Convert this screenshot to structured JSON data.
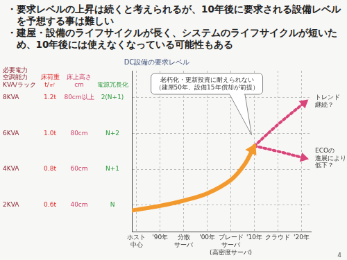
{
  "bullets": [
    "・要求レベルの上昇は続くと考えられるが、10年後に要求される設備レベルを予想する事は難しい",
    "・建屋・設備のライフサイクルが長く、システムのライフサイクルが短いため、10年後には使えなくなっている可能性もある"
  ],
  "page_number": "4",
  "chart_data": {
    "type": "line",
    "title": "DC設備の要求レベル",
    "x": [
      1984,
      1990,
      1995,
      2000,
      2005,
      2008,
      2010,
      2015,
      2021
    ],
    "xlim": [
      1984,
      2022
    ],
    "xticks": [
      {
        "value": 1985,
        "label": "ホスト\n中心"
      },
      {
        "value": 1990,
        "label": "'90年"
      },
      {
        "value": 1995,
        "label": "分散\nサーバ"
      },
      {
        "value": 2000,
        "label": "'00年"
      },
      {
        "value": 2005,
        "label": "ブレード\nサーバ\n(高密度サーバ)"
      },
      {
        "value": 2010,
        "label": "'10年"
      },
      {
        "value": 2015,
        "label": "クラウド"
      },
      {
        "value": 2020,
        "label": "'20年"
      }
    ],
    "ylim": [
      0.5,
      9.5
    ],
    "yticks": [
      {
        "value": 2,
        "label": "2KVA"
      },
      {
        "value": 4,
        "label": "4KVA"
      },
      {
        "value": 6,
        "label": "6KVA"
      },
      {
        "value": 8,
        "label": "8KVA"
      }
    ],
    "grid": true,
    "table": {
      "headers": [
        "必要電力\n空調能力\nKVA/ラック",
        "床荷重\nt/㎡",
        "床上高さ\ncm",
        "電源冗長化"
      ],
      "rows": [
        [
          "0.6t",
          "40cm",
          "N"
        ],
        [
          "0.8t",
          "60cm",
          "N+1"
        ],
        [
          "1.0t",
          "80cm",
          "N+2"
        ],
        [
          "1.2t",
          "80cm以上",
          "2(N+1)"
        ]
      ]
    },
    "series": [
      {
        "color": "#f39a2e",
        "line_style": "solid",
        "marker": "arrow",
        "values": [
          1.7,
          1.96,
          2.25,
          2.65,
          3.4,
          4.3,
          5.3,
          null,
          null
        ],
        "annotation": "老朽化・更新投資に耐えられない\n（建屋50年、設備15年償却が前提）"
      },
      {
        "color": "#d9457a",
        "line_style": "dotted",
        "marker": "arrow",
        "values": [
          null,
          null,
          null,
          null,
          null,
          null,
          5.3,
          6.5,
          7.8
        ],
        "annotation": "トレンド\n継続？"
      },
      {
        "color": "#d9457a",
        "line_style": "dotted",
        "marker": "arrow",
        "values": [
          null,
          null,
          null,
          null,
          null,
          null,
          5.3,
          5.0,
          4.6
        ],
        "annotation": "ECOの\n進展により\n低下？"
      }
    ]
  }
}
